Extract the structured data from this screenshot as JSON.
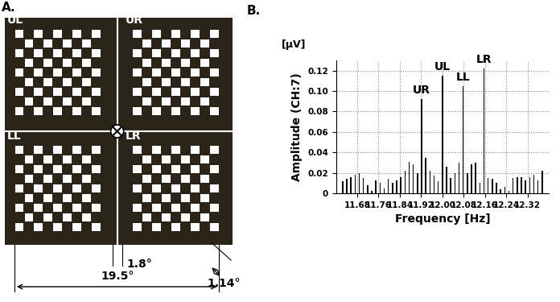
{
  "diagram": {
    "panel_label": "A.",
    "quadrants": [
      "UL",
      "UR",
      "LL",
      "LR"
    ],
    "dimensions": {
      "total_width": "19.5°",
      "gap": "1.8°",
      "check_size": "1.14°"
    }
  },
  "chart_data": {
    "type": "bar",
    "panel_label": "B.",
    "y_unit": "[µV]",
    "xlabel": "Frequency [Hz]",
    "ylabel": "Amplitude (CH:7)",
    "x": [
      11.625,
      11.6406,
      11.6563,
      11.6719,
      11.6875,
      11.7031,
      11.7188,
      11.7344,
      11.75,
      11.7656,
      11.7813,
      11.7969,
      11.8125,
      11.8281,
      11.8438,
      11.8594,
      11.875,
      11.8906,
      11.9063,
      11.9219,
      11.9375,
      11.9531,
      11.9688,
      11.9844,
      12.0,
      12.0156,
      12.0313,
      12.0469,
      12.0625,
      12.0781,
      12.0938,
      12.1094,
      12.125,
      12.1406,
      12.1563,
      12.1719,
      12.1875,
      12.2031,
      12.2188,
      12.2344,
      12.25,
      12.2656,
      12.2813,
      12.2969,
      12.3125,
      12.3281,
      12.3438,
      12.3594,
      12.375
    ],
    "values": [
      0.012,
      0.014,
      0.016,
      0.018,
      0.02,
      0.015,
      0.008,
      0.002,
      0.013,
      0.01,
      0.005,
      0.014,
      0.01,
      0.013,
      0.016,
      0.022,
      0.031,
      0.028,
      0.02,
      0.092,
      0.035,
      0.022,
      0.017,
      0.012,
      0.115,
      0.026,
      0.015,
      0.02,
      0.03,
      0.105,
      0.02,
      0.028,
      0.03,
      0.01,
      0.122,
      0.015,
      0.014,
      0.01,
      0.004,
      0.006,
      0.002,
      0.015,
      0.016,
      0.016,
      0.013,
      0.016,
      0.018,
      0.013,
      0.022
    ],
    "color": "#000000",
    "xlim": [
      11.6,
      12.4
    ],
    "xticks": [
      11.68,
      11.76,
      11.84,
      11.92,
      {
        "value": 12.0,
        "label": "12.00"
      },
      12.08,
      12.16,
      12.24,
      12.32
    ],
    "ylim": [
      0,
      0.13
    ],
    "yticks": [
      0,
      0.02,
      0.04,
      0.06,
      0.08,
      {
        "value": 0.1,
        "label": "0.10"
      },
      0.12
    ],
    "grid": true,
    "annotations": [
      {
        "text": "UR",
        "x": 11.9219,
        "y": 0.092
      },
      {
        "text": "UL",
        "x": 12.0,
        "y": 0.115
      },
      {
        "text": "LL",
        "x": 12.0781,
        "y": 0.105
      },
      {
        "text": "LR",
        "x": 12.1563,
        "y": 0.122
      }
    ]
  }
}
